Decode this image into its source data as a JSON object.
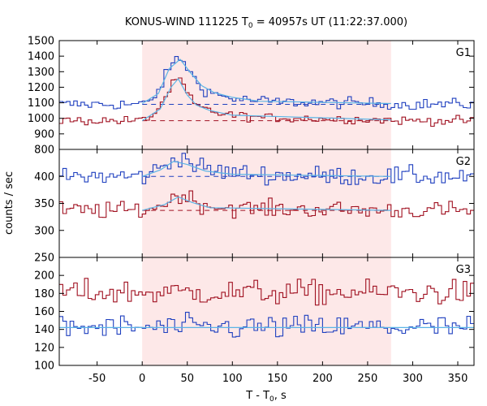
{
  "chart_data": {
    "type": "line",
    "title_prefix": "KONUS-WIND 111225 T",
    "title_sub": "0",
    "title_suffix": " = 40957s UT (11:22:37.000)",
    "xlabel_prefix": "T - T",
    "xlabel_sub": "0",
    "xlabel_suffix": ", s",
    "ylabel": "counts / sec",
    "xlim": [
      -92,
      368
    ],
    "xticks": [
      -50,
      0,
      50,
      100,
      150,
      200,
      250,
      300,
      350
    ],
    "grid": false,
    "highlight_interval": [
      0,
      276
    ],
    "colors": {
      "highlight": "#fde8e8",
      "blue": "#1e3fbf",
      "red": "#a01020",
      "cyan": "#5ab4e6"
    },
    "panels": [
      {
        "label": "G1",
        "ylim": [
          800,
          1500
        ],
        "yticks": [
          800,
          900,
          1000,
          1100,
          1200,
          1300,
          1400,
          1500
        ],
        "series": [
          {
            "color": "blue",
            "bin_width": 4,
            "baseline": 1090,
            "noise": 18,
            "pulse": [
              [
                0,
                1090
              ],
              [
                10,
                1110
              ],
              [
                18,
                1180
              ],
              [
                24,
                1250
              ],
              [
                30,
                1320
              ],
              [
                36,
                1370
              ],
              [
                42,
                1385
              ],
              [
                48,
                1350
              ],
              [
                56,
                1270
              ],
              [
                64,
                1210
              ],
              [
                74,
                1170
              ],
              [
                90,
                1140
              ],
              [
                110,
                1120
              ],
              [
                150,
                1105
              ],
              [
                276,
                1095
              ]
            ]
          },
          {
            "color": "red",
            "bin_width": 4,
            "baseline": 985,
            "noise": 14,
            "pulse": [
              [
                0,
                985
              ],
              [
                12,
                1020
              ],
              [
                20,
                1080
              ],
              [
                26,
                1140
              ],
              [
                32,
                1200
              ],
              [
                38,
                1255
              ],
              [
                44,
                1230
              ],
              [
                50,
                1160
              ],
              [
                58,
                1090
              ],
              [
                68,
                1060
              ],
              [
                80,
                1040
              ],
              [
                100,
                1020
              ],
              [
                130,
                1005
              ],
              [
                276,
                990
              ]
            ]
          }
        ],
        "fits": [
          {
            "color": "blue",
            "x": [
              0,
              18,
              30,
              42,
              54,
              66,
              80,
              100,
              130,
              276
            ],
            "y": [
              1095,
              1160,
              1320,
              1380,
              1290,
              1210,
              1165,
              1135,
              1110,
              1095
            ]
          },
          {
            "color": "red",
            "x": [
              0,
              20,
              32,
              40,
              50,
              60,
              75,
              100,
              276
            ],
            "y": [
              985,
              1060,
              1200,
              1255,
              1150,
              1085,
              1050,
              1020,
              990
            ]
          }
        ],
        "dashed": [
          {
            "color": "blue",
            "y": 1090
          },
          {
            "color": "red",
            "y": 985
          }
        ]
      },
      {
        "label": "G2",
        "ylim": [
          250,
          450
        ],
        "yticks": [
          250,
          300,
          350,
          400
        ],
        "series": [
          {
            "color": "blue",
            "bin_width": 4,
            "baseline": 400,
            "noise": 9,
            "pulse": [
              [
                0,
                400
              ],
              [
                15,
                410
              ],
              [
                30,
                425
              ],
              [
                40,
                440
              ],
              [
                50,
                430
              ],
              [
                65,
                415
              ],
              [
                90,
                408
              ],
              [
                150,
                402
              ],
              [
                276,
                400
              ]
            ]
          },
          {
            "color": "red",
            "bin_width": 4,
            "baseline": 337,
            "noise": 8,
            "pulse": [
              [
                0,
                337
              ],
              [
                20,
                345
              ],
              [
                35,
                360
              ],
              [
                45,
                368
              ],
              [
                60,
                352
              ],
              [
                80,
                344
              ],
              [
                120,
                340
              ],
              [
                276,
                337
              ]
            ]
          }
        ],
        "fits": [
          {
            "color": "blue",
            "x": [
              0,
              20,
              35,
              50,
              70,
              100,
              276
            ],
            "y": [
              400,
              412,
              428,
              422,
              410,
              404,
              400
            ]
          },
          {
            "color": "red",
            "x": [
              0,
              25,
              40,
              55,
              75,
              276
            ],
            "y": [
              337,
              348,
              362,
              352,
              342,
              337
            ]
          }
        ],
        "dashed": [
          {
            "color": "blue",
            "y": 400
          },
          {
            "color": "red",
            "y": 337
          }
        ]
      },
      {
        "label": "G3",
        "ylim": [
          100,
          220
        ],
        "yticks": [
          100,
          120,
          140,
          160,
          180,
          200
        ],
        "series": [
          {
            "color": "red",
            "bin_width": 4,
            "baseline": 181,
            "noise": 7,
            "pulse": []
          },
          {
            "color": "blue",
            "bin_width": 4,
            "baseline": 142,
            "noise": 7,
            "pulse": []
          }
        ],
        "fits": [
          {
            "color": "blue",
            "x": [
              -92,
              368
            ],
            "y": [
              142,
              142
            ]
          }
        ],
        "dashed": []
      }
    ]
  }
}
